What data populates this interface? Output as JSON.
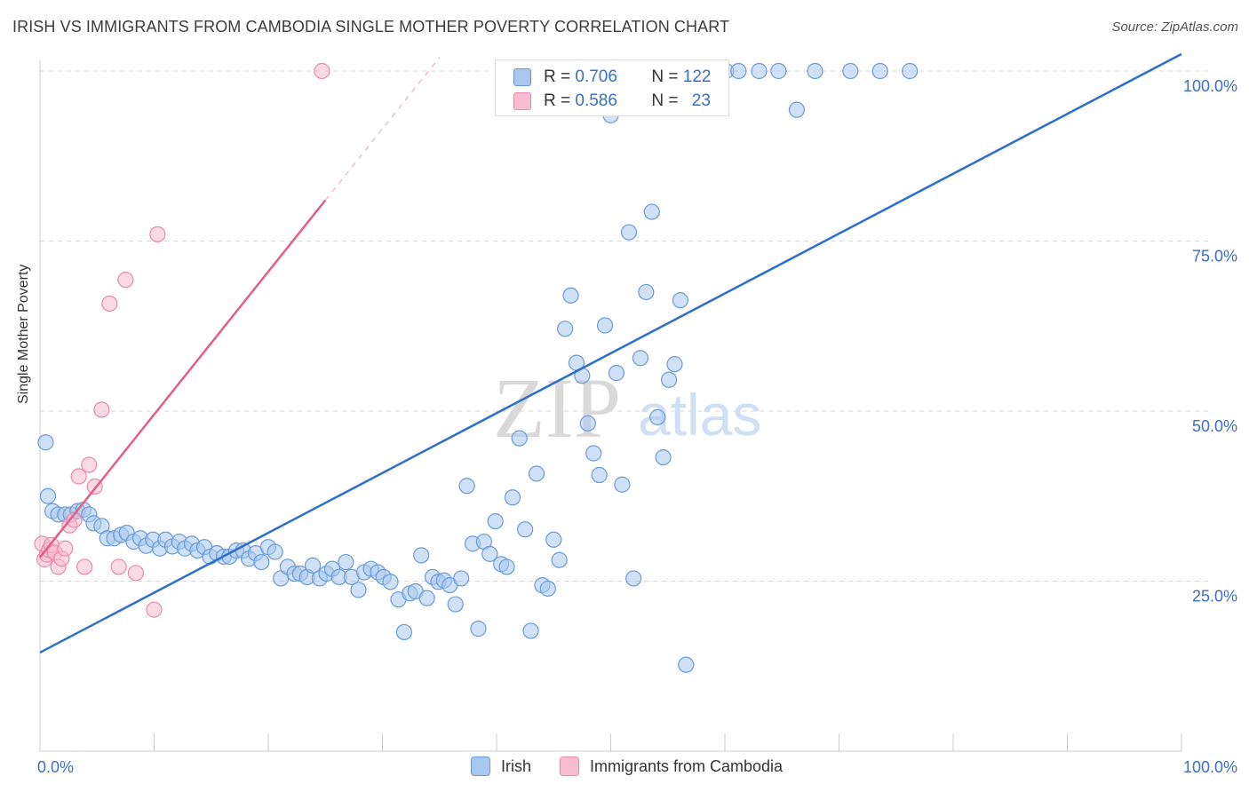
{
  "title": "IRISH VS IMMIGRANTS FROM CAMBODIA SINGLE MOTHER POVERTY CORRELATION CHART",
  "source": "Source: ZipAtlas.com",
  "watermark": {
    "zip": "ZIP",
    "atlas": "atlas"
  },
  "stats": {
    "irish": {
      "r_label": "R = ",
      "r_value": "0.706",
      "n_label": "N = ",
      "n_value": "122"
    },
    "cambodia": {
      "r_label": "R = ",
      "r_value": "0.586",
      "n_label": "N = ",
      "n_value": "23"
    }
  },
  "legend": {
    "irish": "Irish",
    "cambodia": "Immigrants from Cambodia"
  },
  "colors": {
    "irish_fill": "#a9c8f0",
    "irish_stroke": "#6a9bd8",
    "irish_line": "#2f6fcc",
    "cambodia_fill": "#f7bcd0",
    "cambodia_stroke": "#e98aa8",
    "cambodia_line": "#e0608a",
    "tick_label": "#3a6fc4",
    "grid": "#d8d8d8"
  },
  "chart_data": {
    "type": "scatter",
    "title": "IRISH VS IMMIGRANTS FROM CAMBODIA SINGLE MOTHER POVERTY CORRELATION CHART",
    "xlabel": "",
    "ylabel": "Single Mother Poverty",
    "xlim": [
      0,
      100
    ],
    "ylim": [
      0,
      100
    ],
    "x_tick_labels": [
      "0.0%",
      "100.0%"
    ],
    "y_ticks": [
      25,
      50,
      75,
      100
    ],
    "y_tick_labels": [
      "25.0%",
      "50.0%",
      "75.0%",
      "100.0%"
    ],
    "grid": true,
    "legend_position": "bottom-center",
    "series": [
      {
        "name": "Irish",
        "r": 0.706,
        "n": 122,
        "trend": {
          "x": [
            0,
            100
          ],
          "y": [
            14.5,
            102.5
          ]
        },
        "points": [
          [
            0.5,
            45.4
          ],
          [
            0.7,
            37.5
          ],
          [
            1.1,
            35.3
          ],
          [
            1.6,
            34.8
          ],
          [
            2.2,
            34.8
          ],
          [
            2.7,
            34.8
          ],
          [
            3.3,
            35.3
          ],
          [
            3.8,
            35.5
          ],
          [
            4.3,
            34.8
          ],
          [
            4.7,
            33.5
          ],
          [
            5.4,
            33.1
          ],
          [
            5.9,
            31.3
          ],
          [
            6.5,
            31.3
          ],
          [
            7.1,
            31.8
          ],
          [
            7.6,
            32.1
          ],
          [
            8.2,
            30.8
          ],
          [
            8.8,
            31.3
          ],
          [
            9.3,
            30.2
          ],
          [
            9.9,
            31.1
          ],
          [
            10.5,
            29.8
          ],
          [
            11.0,
            31.1
          ],
          [
            11.6,
            30.1
          ],
          [
            12.2,
            30.8
          ],
          [
            12.7,
            29.8
          ],
          [
            13.3,
            30.5
          ],
          [
            13.8,
            29.5
          ],
          [
            14.4,
            30.0
          ],
          [
            14.9,
            28.6
          ],
          [
            15.5,
            29.1
          ],
          [
            16.1,
            28.6
          ],
          [
            16.6,
            28.6
          ],
          [
            17.2,
            29.5
          ],
          [
            17.8,
            29.5
          ],
          [
            18.3,
            28.3
          ],
          [
            18.9,
            29.1
          ],
          [
            19.4,
            27.8
          ],
          [
            20.0,
            30.0
          ],
          [
            20.6,
            29.3
          ],
          [
            21.1,
            25.4
          ],
          [
            21.7,
            27.1
          ],
          [
            22.3,
            26.1
          ],
          [
            22.8,
            26.1
          ],
          [
            23.4,
            25.6
          ],
          [
            23.9,
            27.3
          ],
          [
            24.5,
            25.4
          ],
          [
            25.1,
            26.1
          ],
          [
            25.6,
            26.8
          ],
          [
            26.2,
            25.6
          ],
          [
            26.8,
            27.8
          ],
          [
            27.3,
            25.6
          ],
          [
            27.9,
            23.7
          ],
          [
            28.4,
            26.3
          ],
          [
            29.0,
            26.8
          ],
          [
            29.6,
            26.3
          ],
          [
            30.1,
            25.6
          ],
          [
            30.7,
            24.9
          ],
          [
            31.4,
            22.3
          ],
          [
            31.9,
            17.5
          ],
          [
            32.4,
            23.2
          ],
          [
            32.9,
            23.5
          ],
          [
            33.4,
            28.8
          ],
          [
            33.9,
            22.5
          ],
          [
            34.4,
            25.6
          ],
          [
            34.9,
            24.9
          ],
          [
            35.4,
            25.1
          ],
          [
            35.9,
            24.4
          ],
          [
            36.4,
            21.6
          ],
          [
            36.9,
            25.4
          ],
          [
            37.4,
            39.0
          ],
          [
            37.9,
            30.5
          ],
          [
            38.4,
            18.0
          ],
          [
            38.9,
            30.8
          ],
          [
            39.4,
            29.0
          ],
          [
            39.9,
            33.8
          ],
          [
            40.4,
            27.5
          ],
          [
            40.9,
            27.1
          ],
          [
            41.4,
            37.3
          ],
          [
            42.0,
            46.0
          ],
          [
            42.5,
            32.6
          ],
          [
            43.0,
            17.7
          ],
          [
            43.5,
            40.8
          ],
          [
            44.0,
            24.4
          ],
          [
            44.5,
            23.9
          ],
          [
            45.0,
            31.1
          ],
          [
            45.5,
            28.1
          ],
          [
            46.0,
            62.1
          ],
          [
            46.5,
            67.0
          ],
          [
            47.0,
            57.1
          ],
          [
            47.5,
            55.2
          ],
          [
            48.0,
            48.2
          ],
          [
            48.5,
            43.8
          ],
          [
            49.0,
            40.6
          ],
          [
            49.5,
            62.6
          ],
          [
            50.0,
            93.5
          ],
          [
            50.5,
            55.6
          ],
          [
            51.0,
            39.2
          ],
          [
            51.6,
            76.3
          ],
          [
            52.0,
            25.4
          ],
          [
            52.6,
            57.8
          ],
          [
            53.1,
            67.5
          ],
          [
            53.6,
            79.3
          ],
          [
            54.1,
            49.1
          ],
          [
            54.6,
            43.2
          ],
          [
            55.1,
            54.6
          ],
          [
            55.6,
            56.9
          ],
          [
            56.1,
            66.3
          ],
          [
            56.6,
            12.7
          ],
          [
            57.1,
            100
          ],
          [
            57.6,
            100
          ],
          [
            58.1,
            100
          ],
          [
            58.6,
            100
          ],
          [
            59.1,
            100
          ],
          [
            59.6,
            100
          ],
          [
            60.1,
            100
          ],
          [
            61.2,
            100
          ],
          [
            63.0,
            100
          ],
          [
            64.7,
            100
          ],
          [
            66.3,
            94.3
          ],
          [
            67.9,
            100
          ],
          [
            71.0,
            100
          ],
          [
            73.6,
            100
          ],
          [
            76.2,
            100
          ]
        ]
      },
      {
        "name": "Immigrants from Cambodia",
        "r": 0.586,
        "n": 23,
        "trend": {
          "x": [
            0,
            25
          ],
          "y": [
            28.5,
            81
          ]
        },
        "trend_dashed": {
          "x": [
            25,
            35
          ],
          "y": [
            81,
            102
          ]
        },
        "points": [
          [
            0.2,
            30.5
          ],
          [
            0.4,
            28.2
          ],
          [
            0.6,
            28.9
          ],
          [
            0.8,
            29.6
          ],
          [
            1.0,
            30.3
          ],
          [
            1.3,
            29.2
          ],
          [
            1.6,
            27.1
          ],
          [
            1.9,
            28.3
          ],
          [
            2.2,
            29.8
          ],
          [
            2.6,
            33.2
          ],
          [
            3.0,
            34.0
          ],
          [
            3.4,
            40.4
          ],
          [
            3.9,
            27.1
          ],
          [
            4.3,
            42.1
          ],
          [
            4.8,
            38.9
          ],
          [
            5.4,
            50.2
          ],
          [
            6.1,
            65.8
          ],
          [
            6.9,
            27.1
          ],
          [
            7.5,
            69.3
          ],
          [
            8.4,
            26.2
          ],
          [
            10.0,
            20.8
          ],
          [
            10.3,
            76.0
          ],
          [
            24.7,
            100
          ]
        ]
      }
    ]
  }
}
